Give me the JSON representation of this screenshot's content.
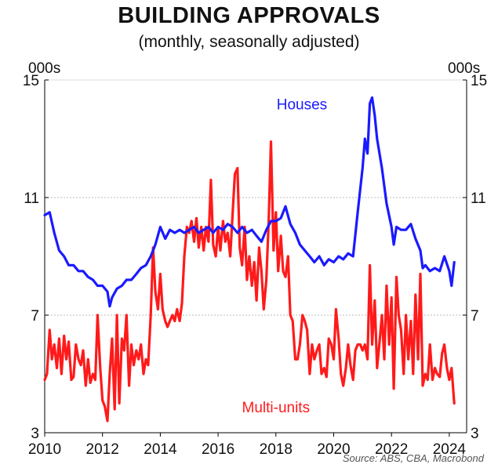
{
  "title": "BUILDING APPROVALS",
  "subtitle": "(monthly, seasonally adjusted)",
  "unit_left": "000s",
  "unit_right": "000s",
  "source": "Source: ABS, CBA, Macrobond",
  "colors": {
    "houses": "#1a1aff",
    "multi_units": "#ff1a1a",
    "grid": "#bbbbbb",
    "axis": "#000000"
  },
  "chart_data": {
    "type": "line",
    "title": "BUILDING APPROVALS",
    "subtitle": "(monthly, seasonally adjusted)",
    "ylabel": "000s",
    "xlim": [
      2010,
      2024.6
    ],
    "ylim": [
      3,
      15
    ],
    "yticks": [
      3,
      7,
      11,
      15
    ],
    "xticks": [
      2010,
      2012,
      2014,
      2016,
      2018,
      2020,
      2022,
      2024
    ],
    "grid": "horizontal dotted",
    "legend": "inline labels",
    "annotations": [
      {
        "text": "Houses",
        "series": "Houses",
        "x": 2018.9,
        "y": 14.0
      },
      {
        "text": "Multi-units",
        "series": "Multi-units",
        "x": 2018.0,
        "y": 3.7
      }
    ],
    "series": [
      {
        "name": "Houses",
        "color": "#1a1aff",
        "points": [
          [
            2010.0,
            10.4
          ],
          [
            2010.17,
            10.5
          ],
          [
            2010.33,
            9.8
          ],
          [
            2010.5,
            9.2
          ],
          [
            2010.67,
            9.0
          ],
          [
            2010.83,
            8.7
          ],
          [
            2011.0,
            8.7
          ],
          [
            2011.17,
            8.5
          ],
          [
            2011.33,
            8.5
          ],
          [
            2011.5,
            8.3
          ],
          [
            2011.67,
            8.2
          ],
          [
            2011.83,
            8.0
          ],
          [
            2012.0,
            8.0
          ],
          [
            2012.17,
            7.8
          ],
          [
            2012.25,
            7.3
          ],
          [
            2012.33,
            7.6
          ],
          [
            2012.5,
            7.9
          ],
          [
            2012.67,
            8.0
          ],
          [
            2012.83,
            8.2
          ],
          [
            2013.0,
            8.2
          ],
          [
            2013.17,
            8.4
          ],
          [
            2013.33,
            8.6
          ],
          [
            2013.5,
            8.7
          ],
          [
            2013.67,
            9.0
          ],
          [
            2013.83,
            9.4
          ],
          [
            2014.0,
            10.0
          ],
          [
            2014.17,
            9.6
          ],
          [
            2014.33,
            9.9
          ],
          [
            2014.5,
            9.8
          ],
          [
            2014.67,
            9.9
          ],
          [
            2014.83,
            9.8
          ],
          [
            2015.0,
            9.9
          ],
          [
            2015.17,
            10.0
          ],
          [
            2015.33,
            9.8
          ],
          [
            2015.5,
            9.9
          ],
          [
            2015.67,
            10.0
          ],
          [
            2015.83,
            9.8
          ],
          [
            2016.0,
            10.0
          ],
          [
            2016.17,
            9.9
          ],
          [
            2016.33,
            10.1
          ],
          [
            2016.5,
            10.0
          ],
          [
            2016.67,
            9.8
          ],
          [
            2016.83,
            10.0
          ],
          [
            2017.0,
            9.8
          ],
          [
            2017.17,
            9.9
          ],
          [
            2017.33,
            9.7
          ],
          [
            2017.5,
            9.5
          ],
          [
            2017.67,
            9.9
          ],
          [
            2017.83,
            10.2
          ],
          [
            2018.0,
            10.2
          ],
          [
            2018.17,
            10.3
          ],
          [
            2018.33,
            10.7
          ],
          [
            2018.5,
            10.1
          ],
          [
            2018.67,
            9.8
          ],
          [
            2018.83,
            9.4
          ],
          [
            2019.0,
            9.2
          ],
          [
            2019.17,
            9.0
          ],
          [
            2019.33,
            8.8
          ],
          [
            2019.5,
            9.0
          ],
          [
            2019.67,
            8.7
          ],
          [
            2019.83,
            8.9
          ],
          [
            2020.0,
            8.8
          ],
          [
            2020.17,
            9.0
          ],
          [
            2020.33,
            8.9
          ],
          [
            2020.5,
            9.1
          ],
          [
            2020.67,
            9.0
          ],
          [
            2020.83,
            10.5
          ],
          [
            2021.0,
            12.0
          ],
          [
            2021.08,
            13.0
          ],
          [
            2021.17,
            12.5
          ],
          [
            2021.25,
            14.2
          ],
          [
            2021.33,
            14.4
          ],
          [
            2021.42,
            13.8
          ],
          [
            2021.5,
            13.0
          ],
          [
            2021.67,
            12.0
          ],
          [
            2021.83,
            10.8
          ],
          [
            2022.0,
            10.0
          ],
          [
            2022.08,
            9.4
          ],
          [
            2022.17,
            10.0
          ],
          [
            2022.33,
            9.9
          ],
          [
            2022.5,
            9.9
          ],
          [
            2022.67,
            10.1
          ],
          [
            2022.83,
            9.6
          ],
          [
            2023.0,
            9.2
          ],
          [
            2023.08,
            8.6
          ],
          [
            2023.17,
            8.7
          ],
          [
            2023.33,
            8.5
          ],
          [
            2023.5,
            8.6
          ],
          [
            2023.67,
            8.5
          ],
          [
            2023.83,
            9.0
          ],
          [
            2024.0,
            8.5
          ],
          [
            2024.08,
            8.0
          ],
          [
            2024.17,
            8.8
          ]
        ]
      },
      {
        "name": "Multi-units",
        "color": "#ff1a1a",
        "points": [
          [
            2010.0,
            4.8
          ],
          [
            2010.08,
            5.0
          ],
          [
            2010.17,
            6.5
          ],
          [
            2010.25,
            5.5
          ],
          [
            2010.33,
            6.0
          ],
          [
            2010.42,
            5.2
          ],
          [
            2010.5,
            6.2
          ],
          [
            2010.58,
            5.0
          ],
          [
            2010.67,
            6.3
          ],
          [
            2010.75,
            5.5
          ],
          [
            2010.83,
            6.1
          ],
          [
            2010.92,
            4.8
          ],
          [
            2011.0,
            4.9
          ],
          [
            2011.08,
            6.0
          ],
          [
            2011.17,
            5.5
          ],
          [
            2011.25,
            5.3
          ],
          [
            2011.33,
            5.8
          ],
          [
            2011.42,
            4.6
          ],
          [
            2011.5,
            5.5
          ],
          [
            2011.58,
            4.7
          ],
          [
            2011.67,
            5.0
          ],
          [
            2011.75,
            4.8
          ],
          [
            2011.83,
            7.0
          ],
          [
            2011.92,
            5.2
          ],
          [
            2012.0,
            4.1
          ],
          [
            2012.08,
            3.9
          ],
          [
            2012.17,
            3.4
          ],
          [
            2012.25,
            5.0
          ],
          [
            2012.33,
            6.2
          ],
          [
            2012.42,
            3.8
          ],
          [
            2012.5,
            7.0
          ],
          [
            2012.58,
            4.0
          ],
          [
            2012.67,
            6.2
          ],
          [
            2012.75,
            5.8
          ],
          [
            2012.83,
            7.0
          ],
          [
            2012.92,
            4.6
          ],
          [
            2013.0,
            6.0
          ],
          [
            2013.08,
            5.3
          ],
          [
            2013.17,
            5.8
          ],
          [
            2013.25,
            5.5
          ],
          [
            2013.33,
            6.0
          ],
          [
            2013.42,
            5.0
          ],
          [
            2013.5,
            5.5
          ],
          [
            2013.58,
            5.3
          ],
          [
            2013.67,
            7.0
          ],
          [
            2013.75,
            9.3
          ],
          [
            2013.83,
            7.8
          ],
          [
            2013.92,
            7.2
          ],
          [
            2014.0,
            8.4
          ],
          [
            2014.08,
            7.2
          ],
          [
            2014.17,
            6.8
          ],
          [
            2014.25,
            6.6
          ],
          [
            2014.33,
            6.8
          ],
          [
            2014.42,
            7.0
          ],
          [
            2014.5,
            6.8
          ],
          [
            2014.58,
            7.2
          ],
          [
            2014.67,
            6.8
          ],
          [
            2014.75,
            7.4
          ],
          [
            2014.83,
            9.0
          ],
          [
            2014.92,
            10.0
          ],
          [
            2015.0,
            9.8
          ],
          [
            2015.08,
            10.2
          ],
          [
            2015.17,
            9.5
          ],
          [
            2015.25,
            10.3
          ],
          [
            2015.33,
            9.3
          ],
          [
            2015.42,
            10.0
          ],
          [
            2015.5,
            9.2
          ],
          [
            2015.58,
            10.0
          ],
          [
            2015.67,
            9.5
          ],
          [
            2015.75,
            11.6
          ],
          [
            2015.83,
            9.4
          ],
          [
            2015.92,
            9.0
          ],
          [
            2016.0,
            10.0
          ],
          [
            2016.08,
            9.2
          ],
          [
            2016.17,
            10.2
          ],
          [
            2016.25,
            9.5
          ],
          [
            2016.33,
            9.8
          ],
          [
            2016.42,
            9.0
          ],
          [
            2016.5,
            10.4
          ],
          [
            2016.58,
            11.8
          ],
          [
            2016.67,
            12.0
          ],
          [
            2016.75,
            9.3
          ],
          [
            2016.83,
            8.7
          ],
          [
            2016.92,
            10.0
          ],
          [
            2017.0,
            8.2
          ],
          [
            2017.08,
            9.0
          ],
          [
            2017.17,
            8.0
          ],
          [
            2017.25,
            8.8
          ],
          [
            2017.33,
            7.5
          ],
          [
            2017.42,
            9.3
          ],
          [
            2017.5,
            8.5
          ],
          [
            2017.58,
            7.2
          ],
          [
            2017.67,
            8.2
          ],
          [
            2017.75,
            10.2
          ],
          [
            2017.83,
            12.9
          ],
          [
            2017.92,
            9.2
          ],
          [
            2018.0,
            10.5
          ],
          [
            2018.08,
            8.5
          ],
          [
            2018.17,
            9.7
          ],
          [
            2018.25,
            8.5
          ],
          [
            2018.33,
            8.3
          ],
          [
            2018.42,
            9.0
          ],
          [
            2018.5,
            7.0
          ],
          [
            2018.58,
            6.8
          ],
          [
            2018.67,
            5.5
          ],
          [
            2018.75,
            5.5
          ],
          [
            2018.83,
            6.0
          ],
          [
            2018.92,
            7.0
          ],
          [
            2019.0,
            6.8
          ],
          [
            2019.08,
            6.5
          ],
          [
            2019.17,
            5.0
          ],
          [
            2019.25,
            6.0
          ],
          [
            2019.33,
            5.5
          ],
          [
            2019.42,
            5.8
          ],
          [
            2019.5,
            6.0
          ],
          [
            2019.58,
            5.0
          ],
          [
            2019.67,
            5.2
          ],
          [
            2019.75,
            4.9
          ],
          [
            2019.83,
            6.2
          ],
          [
            2019.92,
            6.0
          ],
          [
            2020.0,
            5.5
          ],
          [
            2020.08,
            7.2
          ],
          [
            2020.17,
            6.2
          ],
          [
            2020.25,
            5.0
          ],
          [
            2020.33,
            4.6
          ],
          [
            2020.42,
            5.2
          ],
          [
            2020.5,
            6.0
          ],
          [
            2020.58,
            5.3
          ],
          [
            2020.67,
            4.8
          ],
          [
            2020.75,
            5.8
          ],
          [
            2020.83,
            6.0
          ],
          [
            2020.92,
            6.0
          ],
          [
            2021.0,
            5.8
          ],
          [
            2021.08,
            6.0
          ],
          [
            2021.17,
            5.5
          ],
          [
            2021.25,
            8.7
          ],
          [
            2021.33,
            6.0
          ],
          [
            2021.42,
            7.5
          ],
          [
            2021.5,
            5.2
          ],
          [
            2021.58,
            6.0
          ],
          [
            2021.67,
            7.0
          ],
          [
            2021.75,
            5.5
          ],
          [
            2021.83,
            8.0
          ],
          [
            2021.92,
            6.0
          ],
          [
            2022.0,
            7.6
          ],
          [
            2022.08,
            4.5
          ],
          [
            2022.17,
            8.3
          ],
          [
            2022.25,
            7.0
          ],
          [
            2022.33,
            6.5
          ],
          [
            2022.42,
            5.0
          ],
          [
            2022.5,
            7.0
          ],
          [
            2022.58,
            5.5
          ],
          [
            2022.67,
            6.8
          ],
          [
            2022.75,
            5.0
          ],
          [
            2022.83,
            7.7
          ],
          [
            2022.92,
            5.5
          ],
          [
            2023.0,
            8.4
          ],
          [
            2023.08,
            4.6
          ],
          [
            2023.17,
            5.0
          ],
          [
            2023.25,
            4.8
          ],
          [
            2023.33,
            6.0
          ],
          [
            2023.42,
            4.8
          ],
          [
            2023.5,
            5.2
          ],
          [
            2023.58,
            5.0
          ],
          [
            2023.67,
            4.9
          ],
          [
            2023.75,
            5.7
          ],
          [
            2023.83,
            6.0
          ],
          [
            2023.92,
            5.2
          ],
          [
            2024.0,
            4.8
          ],
          [
            2024.08,
            5.2
          ],
          [
            2024.17,
            4.0
          ]
        ]
      }
    ]
  }
}
